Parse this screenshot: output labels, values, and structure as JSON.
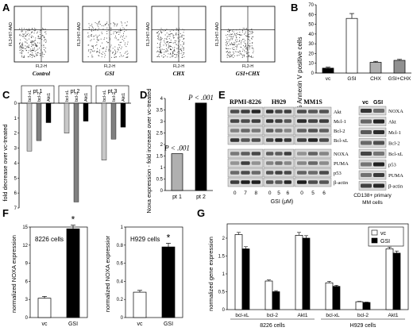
{
  "panels": {
    "A": {
      "label": "A",
      "plots": [
        {
          "caption": "Control",
          "ylabel": "FL3-H/7-AAD",
          "xlabel": "FL2-H"
        },
        {
          "caption": "GSI",
          "ylabel": "FL3-H/7-AAD",
          "xlabel": "FL2-H"
        },
        {
          "caption": "CHX",
          "ylabel": "FL3-H/7-AAD",
          "xlabel": "FL2-H"
        },
        {
          "caption": "GSI+CHX",
          "ylabel": "FL3-H/7-AAD",
          "xlabel": "FL2-H"
        }
      ]
    },
    "B": {
      "label": "B",
      "chart_data": {
        "type": "bar",
        "categories": [
          "vc",
          "GSI",
          "CHX",
          "GSI+CHX"
        ],
        "values": [
          5,
          56,
          11,
          13
        ],
        "errors": [
          1,
          5,
          1,
          1
        ],
        "ylabel": "% Annexin V positive cells",
        "ylim": [
          0,
          70
        ],
        "yticks": [
          "0",
          "10",
          "20",
          "30",
          "40",
          "50",
          "60",
          "70"
        ],
        "colors": [
          "#000000",
          "#ffffff",
          "#b0b0b0",
          "#909090"
        ]
      }
    },
    "C": {
      "label": "C",
      "chart_data": {
        "type": "bar",
        "groups": [
          "pt 1",
          "pt 2",
          "pt 3"
        ],
        "categories": [
          "bcl-xL",
          "bcl-2",
          "Akt1"
        ],
        "values": [
          [
            -3.2,
            -2.5,
            -1.3
          ],
          [
            -2,
            -6.6,
            -1.2
          ],
          [
            -3.8,
            -2.4,
            -1.6
          ]
        ],
        "ylabel": "fold decrease over vc-treated",
        "ylim": [
          -7,
          0
        ],
        "yticks": [
          "0",
          "1",
          "2",
          "3",
          "4",
          "5",
          "6",
          "7"
        ],
        "colors": [
          "#c8c8c8",
          "#808080",
          "#000000"
        ]
      }
    },
    "D": {
      "label": "D",
      "chart_data": {
        "type": "bar",
        "categories": [
          "pt 1",
          "pt 2"
        ],
        "values": [
          1.6,
          3.8
        ],
        "annotations": [
          "P < .001",
          "P < .001"
        ],
        "ylabel": "Noxa expression - fold increase over vc-treated",
        "ylim": [
          0,
          4
        ],
        "yticks": [
          "0",
          "0.5",
          "1",
          "1.5",
          "2",
          "2.5",
          "3",
          "3.5",
          "4"
        ],
        "colors": [
          "#b0b0b0",
          "#000000"
        ]
      }
    },
    "E": {
      "label": "E",
      "cell_lines": [
        "RPMI-8226",
        "H929",
        "MM1S"
      ],
      "top_markers": [
        "Akt",
        "Mcl-1",
        "Bcl-2",
        "Bcl-xL"
      ],
      "bottom_markers": [
        "NOXA",
        "PUMA",
        "p53",
        "β-actin"
      ],
      "doses": [
        "0",
        "7",
        "8",
        "0",
        "5",
        "6",
        "0",
        "5",
        "6"
      ],
      "dose_label": "GSI (μM)",
      "primary_headers": [
        "vc",
        "GSI"
      ],
      "primary_markers": [
        "NOXA",
        "Akt",
        "Mcl-1",
        "Bcl-2",
        "Bcl-xL",
        "p53",
        "PUMA",
        "β-actin"
      ],
      "primary_caption_line1": "CD138+ primary",
      "primary_caption_line2": "MM cells"
    },
    "F": {
      "label": "F",
      "charts": [
        {
          "chart_data": {
            "type": "bar",
            "title": "8226 cells",
            "categories": [
              "vc",
              "GSI"
            ],
            "values": [
              3.2,
              14.7
            ],
            "errors": [
              0.3,
              0.6
            ],
            "ylabel": "normalized NOXA expression",
            "ylim": [
              0,
              15
            ],
            "yticks": [
              "0",
              "3",
              "6",
              "9",
              "12",
              "15"
            ],
            "annotation": "*",
            "colors": [
              "#ffffff",
              "#000000"
            ]
          }
        },
        {
          "chart_data": {
            "type": "bar",
            "title": "H929 cells",
            "categories": [
              "vc",
              "GSI"
            ],
            "values": [
              0.28,
              0.78
            ],
            "errors": [
              0.02,
              0.04
            ],
            "ylabel": "normalized NOXA expressior",
            "ylim": [
              0,
              1
            ],
            "yticks": [
              "0",
              "0.2",
              "0.4",
              "0.6",
              "0.8",
              "1"
            ],
            "annotation": "*",
            "colors": [
              "#ffffff",
              "#000000"
            ]
          }
        }
      ]
    },
    "G": {
      "label": "G",
      "chart_data": {
        "type": "bar",
        "groups": [
          "8226 cells",
          "H929 cells"
        ],
        "categories": [
          "bcl-xL",
          "bcl-2",
          "Akt1",
          "bcl-xL",
          "bcl-2",
          "Akt1"
        ],
        "series": [
          {
            "name": "vc",
            "values": [
              2.1,
              0.8,
              2.08,
              0.75,
              0.22,
              1.7
            ],
            "errors": [
              0.06,
              0.03,
              0.08,
              0.04,
              0.01,
              0.05
            ]
          },
          {
            "name": "GSI",
            "values": [
              1.7,
              0.5,
              2.0,
              0.65,
              0.2,
              1.58
            ],
            "errors": [
              0.06,
              0.03,
              0.07,
              0.03,
              0.01,
              0.06
            ]
          }
        ],
        "ylabel": "normalized gene expression",
        "ylim": [
          0,
          2.4
        ],
        "yticks": [
          "0",
          "0.5",
          "1",
          "1.5",
          "2"
        ],
        "legend_position": "top-right",
        "colors": [
          "#ffffff",
          "#000000"
        ]
      }
    }
  }
}
